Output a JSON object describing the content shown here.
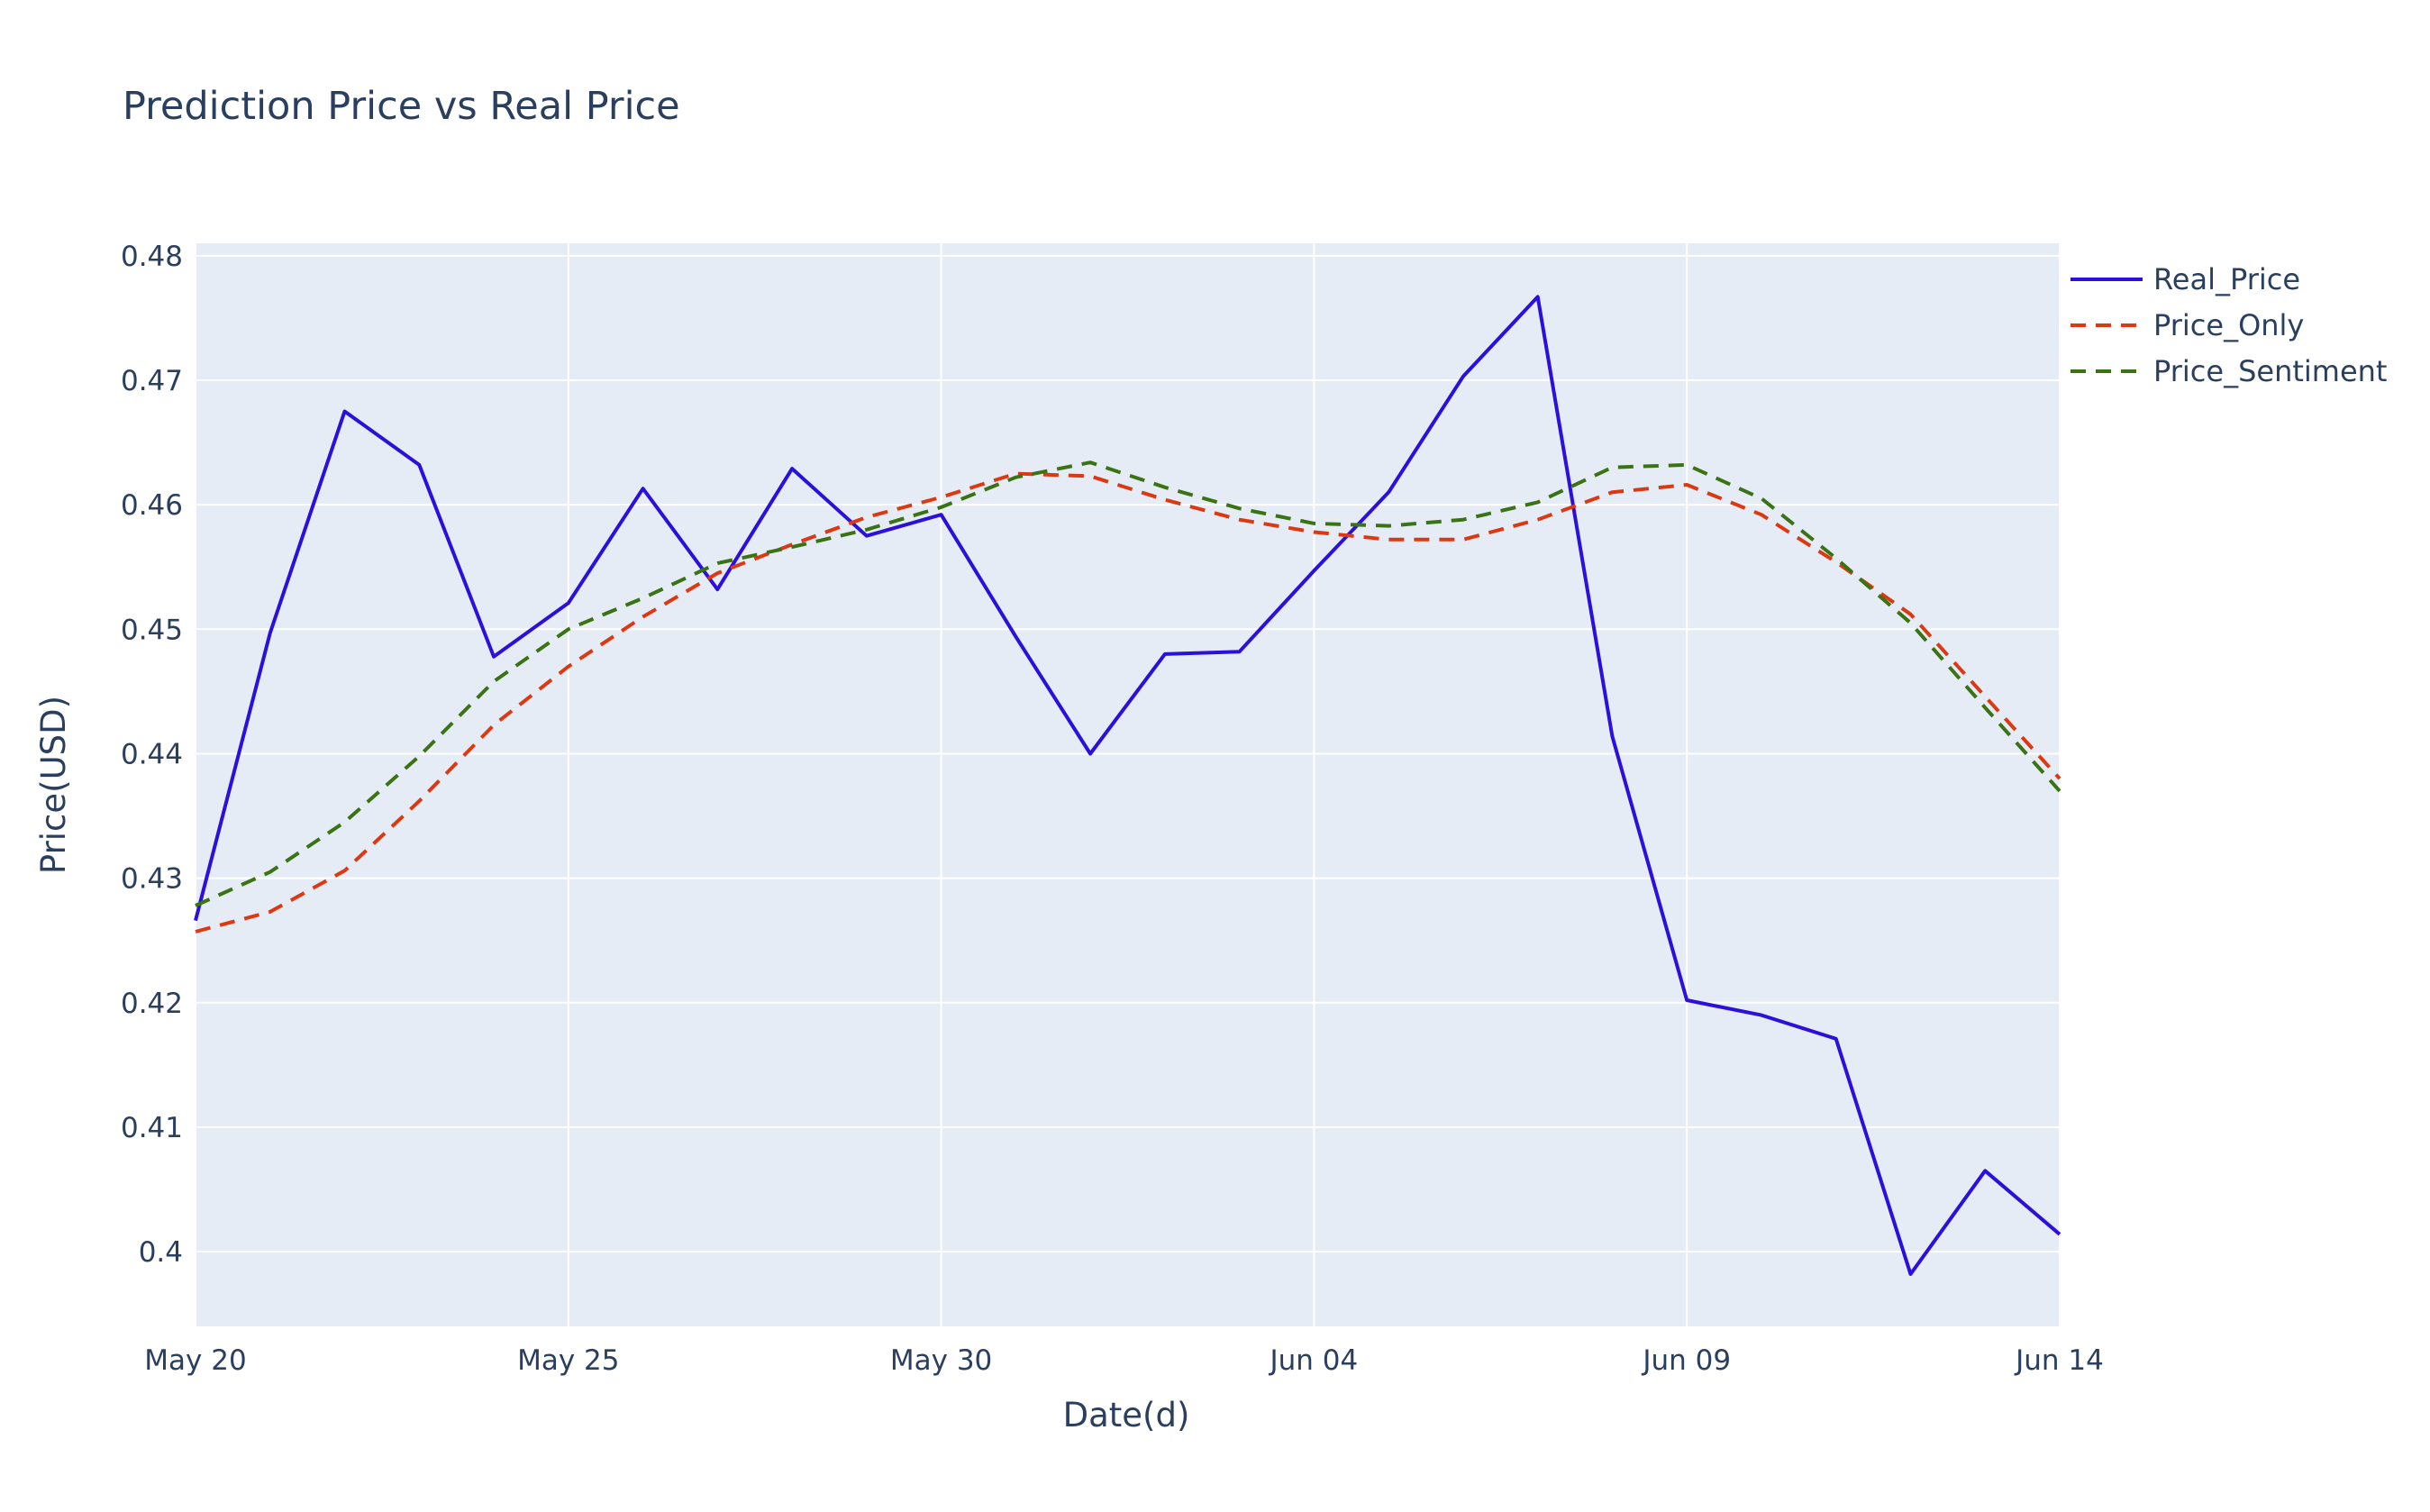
{
  "chart_data": {
    "type": "line",
    "title": "Prediction Price vs Real Price",
    "xlabel": "Date(d)",
    "ylabel": "Price(USD)",
    "x": [
      "May 20",
      "May 21",
      "May 22",
      "May 23",
      "May 24",
      "May 25",
      "May 26",
      "May 27",
      "May 28",
      "May 29",
      "May 30",
      "May 31",
      "Jun 01",
      "Jun 02",
      "Jun 03",
      "Jun 04",
      "Jun 05",
      "Jun 06",
      "Jun 07",
      "Jun 08",
      "Jun 09",
      "Jun 10",
      "Jun 11",
      "Jun 12",
      "Jun 13",
      "Jun 14"
    ],
    "xlim": [
      "May 20",
      "Jun 14"
    ],
    "ylim": [
      0.394,
      0.481
    ],
    "x_tick_labels": [
      "May 20",
      "May 25",
      "May 30",
      "Jun 04",
      "Jun 09",
      "Jun 14"
    ],
    "y_tick_values": [
      0.4,
      0.41,
      0.42,
      0.43,
      0.44,
      0.45,
      0.46,
      0.47,
      0.48
    ],
    "y_tick_labels": [
      "0.4",
      "0.41",
      "0.42",
      "0.43",
      "0.44",
      "0.45",
      "0.46",
      "0.47",
      "0.48"
    ],
    "grid": true,
    "legend_position": "top-right",
    "series": [
      {
        "name": "Real_Price",
        "color": "#2d0fdc",
        "dash": "solid",
        "points": [
          [
            "May 20",
            0.4266
          ],
          [
            "May 21",
            0.4497
          ],
          [
            "May 22",
            0.4675
          ],
          [
            "May 23",
            0.4632
          ],
          [
            "May 24",
            0.4478
          ],
          [
            "May 25",
            0.4521
          ],
          [
            "May 26",
            0.4613
          ],
          [
            "May 27",
            0.4532
          ],
          [
            "May 28",
            0.4629
          ],
          [
            "May 29",
            0.4575
          ],
          [
            "May 30",
            0.4592
          ],
          [
            "May 31",
            0.4494
          ],
          [
            "Jun 01",
            0.44
          ],
          [
            "Jun 02",
            0.448
          ],
          [
            "Jun 03",
            0.4482
          ],
          [
            "Jun 04",
            0.4547
          ],
          [
            "Jun 05",
            0.461
          ],
          [
            "Jun 06",
            0.4703
          ],
          [
            "Jun 07",
            0.4767
          ],
          [
            "Jun 08",
            0.4414
          ],
          [
            "Jun 09",
            0.4202
          ],
          [
            "Jun 10",
            0.419
          ],
          [
            "Jun 11",
            0.4171
          ],
          [
            "Jun 12",
            0.3982
          ],
          [
            "Jun 13",
            0.4065
          ],
          [
            "Jun 14",
            0.4014
          ]
        ]
      },
      {
        "name": "Price_Only",
        "color": "#dc3912",
        "dash": "dash",
        "points": [
          [
            "May 20",
            0.4257
          ],
          [
            "May 21",
            0.4273
          ],
          [
            "May 22",
            0.4306
          ],
          [
            "May 23",
            0.4362
          ],
          [
            "May 24",
            0.4423
          ],
          [
            "May 25",
            0.447
          ],
          [
            "May 26",
            0.451
          ],
          [
            "May 27",
            0.4545
          ],
          [
            "May 28",
            0.4568
          ],
          [
            "May 29",
            0.459
          ],
          [
            "May 30",
            0.4606
          ],
          [
            "May 31",
            0.4625
          ],
          [
            "Jun 01",
            0.4623
          ],
          [
            "Jun 02",
            0.4604
          ],
          [
            "Jun 03",
            0.4588
          ],
          [
            "Jun 04",
            0.4578
          ],
          [
            "Jun 05",
            0.4572
          ],
          [
            "Jun 06",
            0.4572
          ],
          [
            "Jun 07",
            0.4588
          ],
          [
            "Jun 08",
            0.461
          ],
          [
            "Jun 09",
            0.4616
          ],
          [
            "Jun 10",
            0.4592
          ],
          [
            "Jun 11",
            0.4554
          ],
          [
            "Jun 12",
            0.4512
          ],
          [
            "Jun 13",
            0.4446
          ],
          [
            "Jun 14",
            0.438
          ]
        ]
      },
      {
        "name": "Price_Sentiment",
        "color": "#3a7314",
        "dash": "dash",
        "points": [
          [
            "May 20",
            0.4278
          ],
          [
            "May 21",
            0.4305
          ],
          [
            "May 22",
            0.4345
          ],
          [
            "May 23",
            0.4398
          ],
          [
            "May 24",
            0.4458
          ],
          [
            "May 25",
            0.45
          ],
          [
            "May 26",
            0.4525
          ],
          [
            "May 27",
            0.4553
          ],
          [
            "May 28",
            0.4566
          ],
          [
            "May 29",
            0.458
          ],
          [
            "May 30",
            0.4598
          ],
          [
            "May 31",
            0.4622
          ],
          [
            "Jun 01",
            0.4634
          ],
          [
            "Jun 02",
            0.4614
          ],
          [
            "Jun 03",
            0.4597
          ],
          [
            "Jun 04",
            0.4585
          ],
          [
            "Jun 05",
            0.4583
          ],
          [
            "Jun 06",
            0.4588
          ],
          [
            "Jun 07",
            0.4602
          ],
          [
            "Jun 08",
            0.463
          ],
          [
            "Jun 09",
            0.4632
          ],
          [
            "Jun 10",
            0.4605
          ],
          [
            "Jun 11",
            0.4557
          ],
          [
            "Jun 12",
            0.4505
          ],
          [
            "Jun 13",
            0.4437
          ],
          [
            "Jun 14",
            0.437
          ]
        ]
      }
    ]
  }
}
